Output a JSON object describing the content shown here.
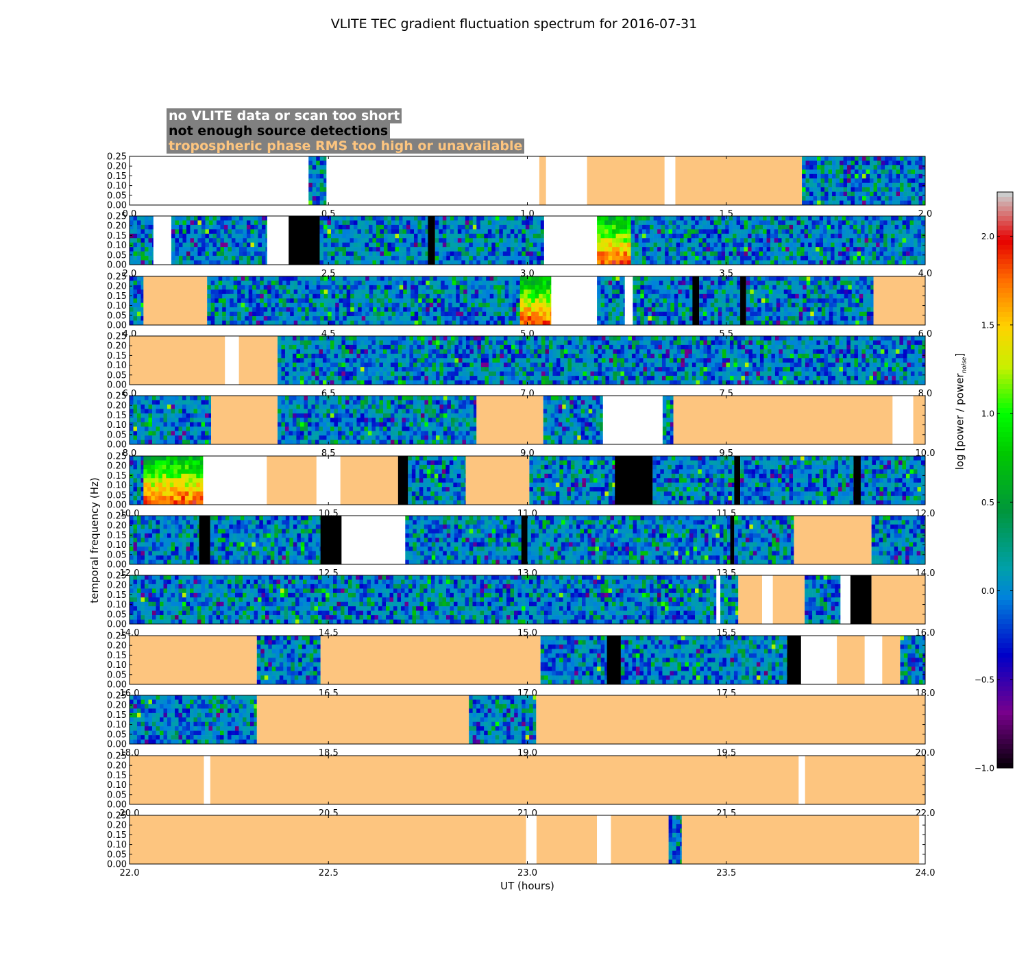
{
  "title": "VLITE TEC gradient fluctuation spectrum for 2016-07-31",
  "legend": {
    "no_data": "no VLITE data or scan too short",
    "no_sources": "not enough source detections",
    "tropo": "tropospheric phase RMS too high or unavailable"
  },
  "colors": {
    "background": "#ffffff",
    "no_data": "#ffffff",
    "no_sources": "#000000",
    "tropo": "#fdc57f",
    "legend_bg": "#808080",
    "legend_no_data_text": "#ffffff",
    "legend_no_sources_text": "#000000",
    "legend_tropo_text": "#fdc57f"
  },
  "chart_data": {
    "type": "heatmap",
    "title": "VLITE TEC gradient fluctuation spectrum for 2016-07-31",
    "xlabel": "UT (hours)",
    "ylabel": "temporal frequency (Hz)",
    "colorbar_label_main": "log [power / power",
    "colorbar_label_sub": "noise",
    "colorbar_label_end": "]",
    "colorbar_range": [
      -1.0,
      2.25
    ],
    "colorbar_ticks": [
      "2.0",
      "1.5",
      "1.0",
      "0.5",
      "0.0",
      "−0.5",
      "−1.0"
    ],
    "colorbar_tick_values": [
      2.0,
      1.5,
      1.0,
      0.5,
      0.0,
      -0.5,
      -1.0
    ],
    "ylim": [
      0,
      0.25
    ],
    "yticks": [
      "0.25",
      "0.20",
      "0.15",
      "0.10",
      "0.05",
      "0.00"
    ],
    "ytick_values": [
      0.25,
      0.2,
      0.15,
      0.1,
      0.05,
      0.0
    ],
    "panels": [
      {
        "range": [
          0,
          2
        ],
        "xticks": [
          "0.0",
          "0.5",
          "1.0",
          "1.5",
          "2.0"
        ],
        "segments": [
          {
            "s": 0,
            "e": 0.45,
            "k": "nodata"
          },
          {
            "s": 0.45,
            "e": 0.495,
            "k": "data"
          },
          {
            "s": 0.495,
            "e": 1.03,
            "k": "nodata"
          },
          {
            "s": 1.03,
            "e": 1.047,
            "k": "tropo"
          },
          {
            "s": 1.047,
            "e": 1.15,
            "k": "nodata"
          },
          {
            "s": 1.15,
            "e": 1.345,
            "k": "tropo"
          },
          {
            "s": 1.345,
            "e": 1.372,
            "k": "nodata"
          },
          {
            "s": 1.372,
            "e": 1.69,
            "k": "tropo"
          },
          {
            "s": 1.69,
            "e": 2.0,
            "k": "data"
          }
        ]
      },
      {
        "range": [
          2,
          4
        ],
        "xticks": [
          "2.0",
          "2.5",
          "3.0",
          "3.5",
          "4.0"
        ],
        "segments": [
          {
            "s": 2.0,
            "e": 2.06,
            "k": "data"
          },
          {
            "s": 2.06,
            "e": 2.105,
            "k": "nodata"
          },
          {
            "s": 2.105,
            "e": 2.346,
            "k": "data"
          },
          {
            "s": 2.346,
            "e": 2.4,
            "k": "nodata"
          },
          {
            "s": 2.4,
            "e": 2.478,
            "k": "nosrc"
          },
          {
            "s": 2.478,
            "e": 2.75,
            "k": "data"
          },
          {
            "s": 2.75,
            "e": 2.768,
            "k": "nosrc"
          },
          {
            "s": 2.768,
            "e": 3.042,
            "k": "data"
          },
          {
            "s": 3.042,
            "e": 3.175,
            "k": "nodata"
          },
          {
            "s": 3.175,
            "e": 4.0,
            "k": "data",
            "hot": [
              3.175,
              3.26
            ]
          }
        ]
      },
      {
        "range": [
          4,
          6
        ],
        "xticks": [
          "4.0",
          "4.5",
          "5.0",
          "5.5",
          "6.0"
        ],
        "segments": [
          {
            "s": 4.0,
            "e": 4.035,
            "k": "data"
          },
          {
            "s": 4.035,
            "e": 4.195,
            "k": "tropo"
          },
          {
            "s": 4.195,
            "e": 5.06,
            "k": "data",
            "hot": [
              4.98,
              5.06
            ]
          },
          {
            "s": 5.06,
            "e": 5.175,
            "k": "nodata"
          },
          {
            "s": 5.175,
            "e": 5.245,
            "k": "data"
          },
          {
            "s": 5.245,
            "e": 5.265,
            "k": "nodata"
          },
          {
            "s": 5.265,
            "e": 5.415,
            "k": "data"
          },
          {
            "s": 5.415,
            "e": 5.432,
            "k": "nosrc"
          },
          {
            "s": 5.432,
            "e": 5.535,
            "k": "data"
          },
          {
            "s": 5.535,
            "e": 5.55,
            "k": "nosrc"
          },
          {
            "s": 5.55,
            "e": 5.87,
            "k": "data"
          },
          {
            "s": 5.87,
            "e": 6.0,
            "k": "tropo"
          }
        ]
      },
      {
        "range": [
          6,
          8
        ],
        "xticks": [
          "6.0",
          "6.5",
          "7.0",
          "7.5",
          "8.0"
        ],
        "segments": [
          {
            "s": 6.0,
            "e": 6.24,
            "k": "tropo"
          },
          {
            "s": 6.24,
            "e": 6.275,
            "k": "nodata"
          },
          {
            "s": 6.275,
            "e": 6.372,
            "k": "tropo"
          },
          {
            "s": 6.372,
            "e": 8.0,
            "k": "data"
          }
        ]
      },
      {
        "range": [
          8,
          10
        ],
        "xticks": [
          "8.0",
          "8.5",
          "9.0",
          "9.5",
          "10.0"
        ],
        "segments": [
          {
            "s": 8.0,
            "e": 8.205,
            "k": "data"
          },
          {
            "s": 8.205,
            "e": 8.372,
            "k": "tropo"
          },
          {
            "s": 8.372,
            "e": 8.872,
            "k": "data"
          },
          {
            "s": 8.872,
            "e": 9.04,
            "k": "tropo"
          },
          {
            "s": 9.04,
            "e": 9.19,
            "k": "data"
          },
          {
            "s": 9.19,
            "e": 9.34,
            "k": "nodata"
          },
          {
            "s": 9.34,
            "e": 9.367,
            "k": "data"
          },
          {
            "s": 9.367,
            "e": 9.918,
            "k": "tropo"
          },
          {
            "s": 9.918,
            "e": 9.97,
            "k": "nodata"
          },
          {
            "s": 9.97,
            "e": 10.0,
            "k": "tropo"
          }
        ]
      },
      {
        "range": [
          10,
          12
        ],
        "xticks": [
          "10.0",
          "10.5",
          "11.0",
          "11.5",
          "12.0"
        ],
        "segments": [
          {
            "s": 10.0,
            "e": 10.035,
            "k": "data"
          },
          {
            "s": 10.035,
            "e": 10.185,
            "k": "data",
            "hot": [
              10.035,
              10.185
            ]
          },
          {
            "s": 10.185,
            "e": 10.345,
            "k": "nodata"
          },
          {
            "s": 10.345,
            "e": 10.47,
            "k": "tropo"
          },
          {
            "s": 10.47,
            "e": 10.53,
            "k": "nodata"
          },
          {
            "s": 10.53,
            "e": 10.675,
            "k": "tropo"
          },
          {
            "s": 10.675,
            "e": 10.7,
            "k": "nosrc"
          },
          {
            "s": 10.7,
            "e": 10.845,
            "k": "data"
          },
          {
            "s": 10.845,
            "e": 11.005,
            "k": "tropo"
          },
          {
            "s": 11.005,
            "e": 11.22,
            "k": "data"
          },
          {
            "s": 11.22,
            "e": 11.315,
            "k": "nosrc"
          },
          {
            "s": 11.315,
            "e": 11.52,
            "k": "data"
          },
          {
            "s": 11.52,
            "e": 11.535,
            "k": "nosrc"
          },
          {
            "s": 11.535,
            "e": 11.82,
            "k": "data"
          },
          {
            "s": 11.82,
            "e": 11.838,
            "k": "nosrc"
          },
          {
            "s": 11.838,
            "e": 12.0,
            "k": "data"
          }
        ]
      },
      {
        "range": [
          12,
          14
        ],
        "xticks": [
          "12.0",
          "12.5",
          "13.0",
          "13.5",
          "14.0"
        ],
        "segments": [
          {
            "s": 12.0,
            "e": 12.175,
            "k": "data"
          },
          {
            "s": 12.175,
            "e": 12.203,
            "k": "nosrc"
          },
          {
            "s": 12.203,
            "e": 12.48,
            "k": "data"
          },
          {
            "s": 12.48,
            "e": 12.533,
            "k": "nosrc"
          },
          {
            "s": 12.533,
            "e": 12.693,
            "k": "nodata"
          },
          {
            "s": 12.693,
            "e": 12.985,
            "k": "data"
          },
          {
            "s": 12.985,
            "e": 13.0,
            "k": "nosrc"
          },
          {
            "s": 13.0,
            "e": 13.51,
            "k": "data"
          },
          {
            "s": 13.51,
            "e": 13.52,
            "k": "nosrc"
          },
          {
            "s": 13.52,
            "e": 13.67,
            "k": "data"
          },
          {
            "s": 13.67,
            "e": 13.865,
            "k": "tropo"
          },
          {
            "s": 13.865,
            "e": 14.0,
            "k": "data"
          }
        ]
      },
      {
        "range": [
          14,
          16
        ],
        "xticks": [
          "14.0",
          "14.5",
          "15.0",
          "15.5",
          "16.0"
        ],
        "segments": [
          {
            "s": 14.0,
            "e": 15.475,
            "k": "data"
          },
          {
            "s": 15.475,
            "e": 15.485,
            "k": "nodata"
          },
          {
            "s": 15.485,
            "e": 15.53,
            "k": "data"
          },
          {
            "s": 15.53,
            "e": 15.59,
            "k": "tropo"
          },
          {
            "s": 15.59,
            "e": 15.617,
            "k": "nodata"
          },
          {
            "s": 15.617,
            "e": 15.697,
            "k": "tropo"
          },
          {
            "s": 15.697,
            "e": 15.787,
            "k": "data"
          },
          {
            "s": 15.787,
            "e": 15.812,
            "k": "nodata"
          },
          {
            "s": 15.812,
            "e": 15.865,
            "k": "nosrc"
          },
          {
            "s": 15.865,
            "e": 16.0,
            "k": "tropo"
          }
        ]
      },
      {
        "range": [
          16,
          18
        ],
        "xticks": [
          "16.0",
          "16.5",
          "17.0",
          "17.5",
          "18.0"
        ],
        "segments": [
          {
            "s": 16.0,
            "e": 16.32,
            "k": "tropo"
          },
          {
            "s": 16.32,
            "e": 16.48,
            "k": "data"
          },
          {
            "s": 16.48,
            "e": 17.033,
            "k": "tropo"
          },
          {
            "s": 17.033,
            "e": 17.2,
            "k": "data"
          },
          {
            "s": 17.2,
            "e": 17.235,
            "k": "nosrc"
          },
          {
            "s": 17.235,
            "e": 17.653,
            "k": "data"
          },
          {
            "s": 17.653,
            "e": 17.688,
            "k": "nosrc"
          },
          {
            "s": 17.688,
            "e": 17.778,
            "k": "nodata"
          },
          {
            "s": 17.778,
            "e": 17.848,
            "k": "tropo"
          },
          {
            "s": 17.848,
            "e": 17.892,
            "k": "nodata"
          },
          {
            "s": 17.892,
            "e": 17.937,
            "k": "tropo"
          },
          {
            "s": 17.937,
            "e": 18.0,
            "k": "data"
          }
        ]
      },
      {
        "range": [
          18,
          20
        ],
        "xticks": [
          "18.0",
          "18.5",
          "19.0",
          "19.5",
          "20.0"
        ],
        "segments": [
          {
            "s": 18.0,
            "e": 18.32,
            "k": "data"
          },
          {
            "s": 18.32,
            "e": 18.853,
            "k": "tropo"
          },
          {
            "s": 18.853,
            "e": 19.022,
            "k": "data"
          },
          {
            "s": 19.022,
            "e": 20.0,
            "k": "tropo"
          }
        ]
      },
      {
        "range": [
          20,
          22
        ],
        "xticks": [
          "20.0",
          "20.5",
          "21.0",
          "21.5",
          "22.0"
        ],
        "segments": [
          {
            "s": 20.0,
            "e": 20.187,
            "k": "tropo"
          },
          {
            "s": 20.187,
            "e": 20.203,
            "k": "nodata"
          },
          {
            "s": 20.203,
            "e": 21.682,
            "k": "tropo"
          },
          {
            "s": 21.682,
            "e": 21.698,
            "k": "nodata"
          },
          {
            "s": 21.698,
            "e": 22.0,
            "k": "tropo"
          }
        ]
      },
      {
        "range": [
          22,
          24
        ],
        "xticks": [
          "22.0",
          "22.5",
          "23.0",
          "23.5",
          "24.0"
        ],
        "segments": [
          {
            "s": 22.0,
            "e": 22.997,
            "k": "tropo"
          },
          {
            "s": 22.997,
            "e": 23.023,
            "k": "nodata"
          },
          {
            "s": 23.023,
            "e": 23.175,
            "k": "tropo"
          },
          {
            "s": 23.175,
            "e": 23.21,
            "k": "nodata"
          },
          {
            "s": 23.21,
            "e": 23.355,
            "k": "tropo"
          },
          {
            "s": 23.355,
            "e": 23.388,
            "k": "data"
          },
          {
            "s": 23.388,
            "e": 23.985,
            "k": "tropo"
          },
          {
            "s": 23.985,
            "e": 24.0,
            "k": "nodata"
          }
        ]
      }
    ]
  }
}
